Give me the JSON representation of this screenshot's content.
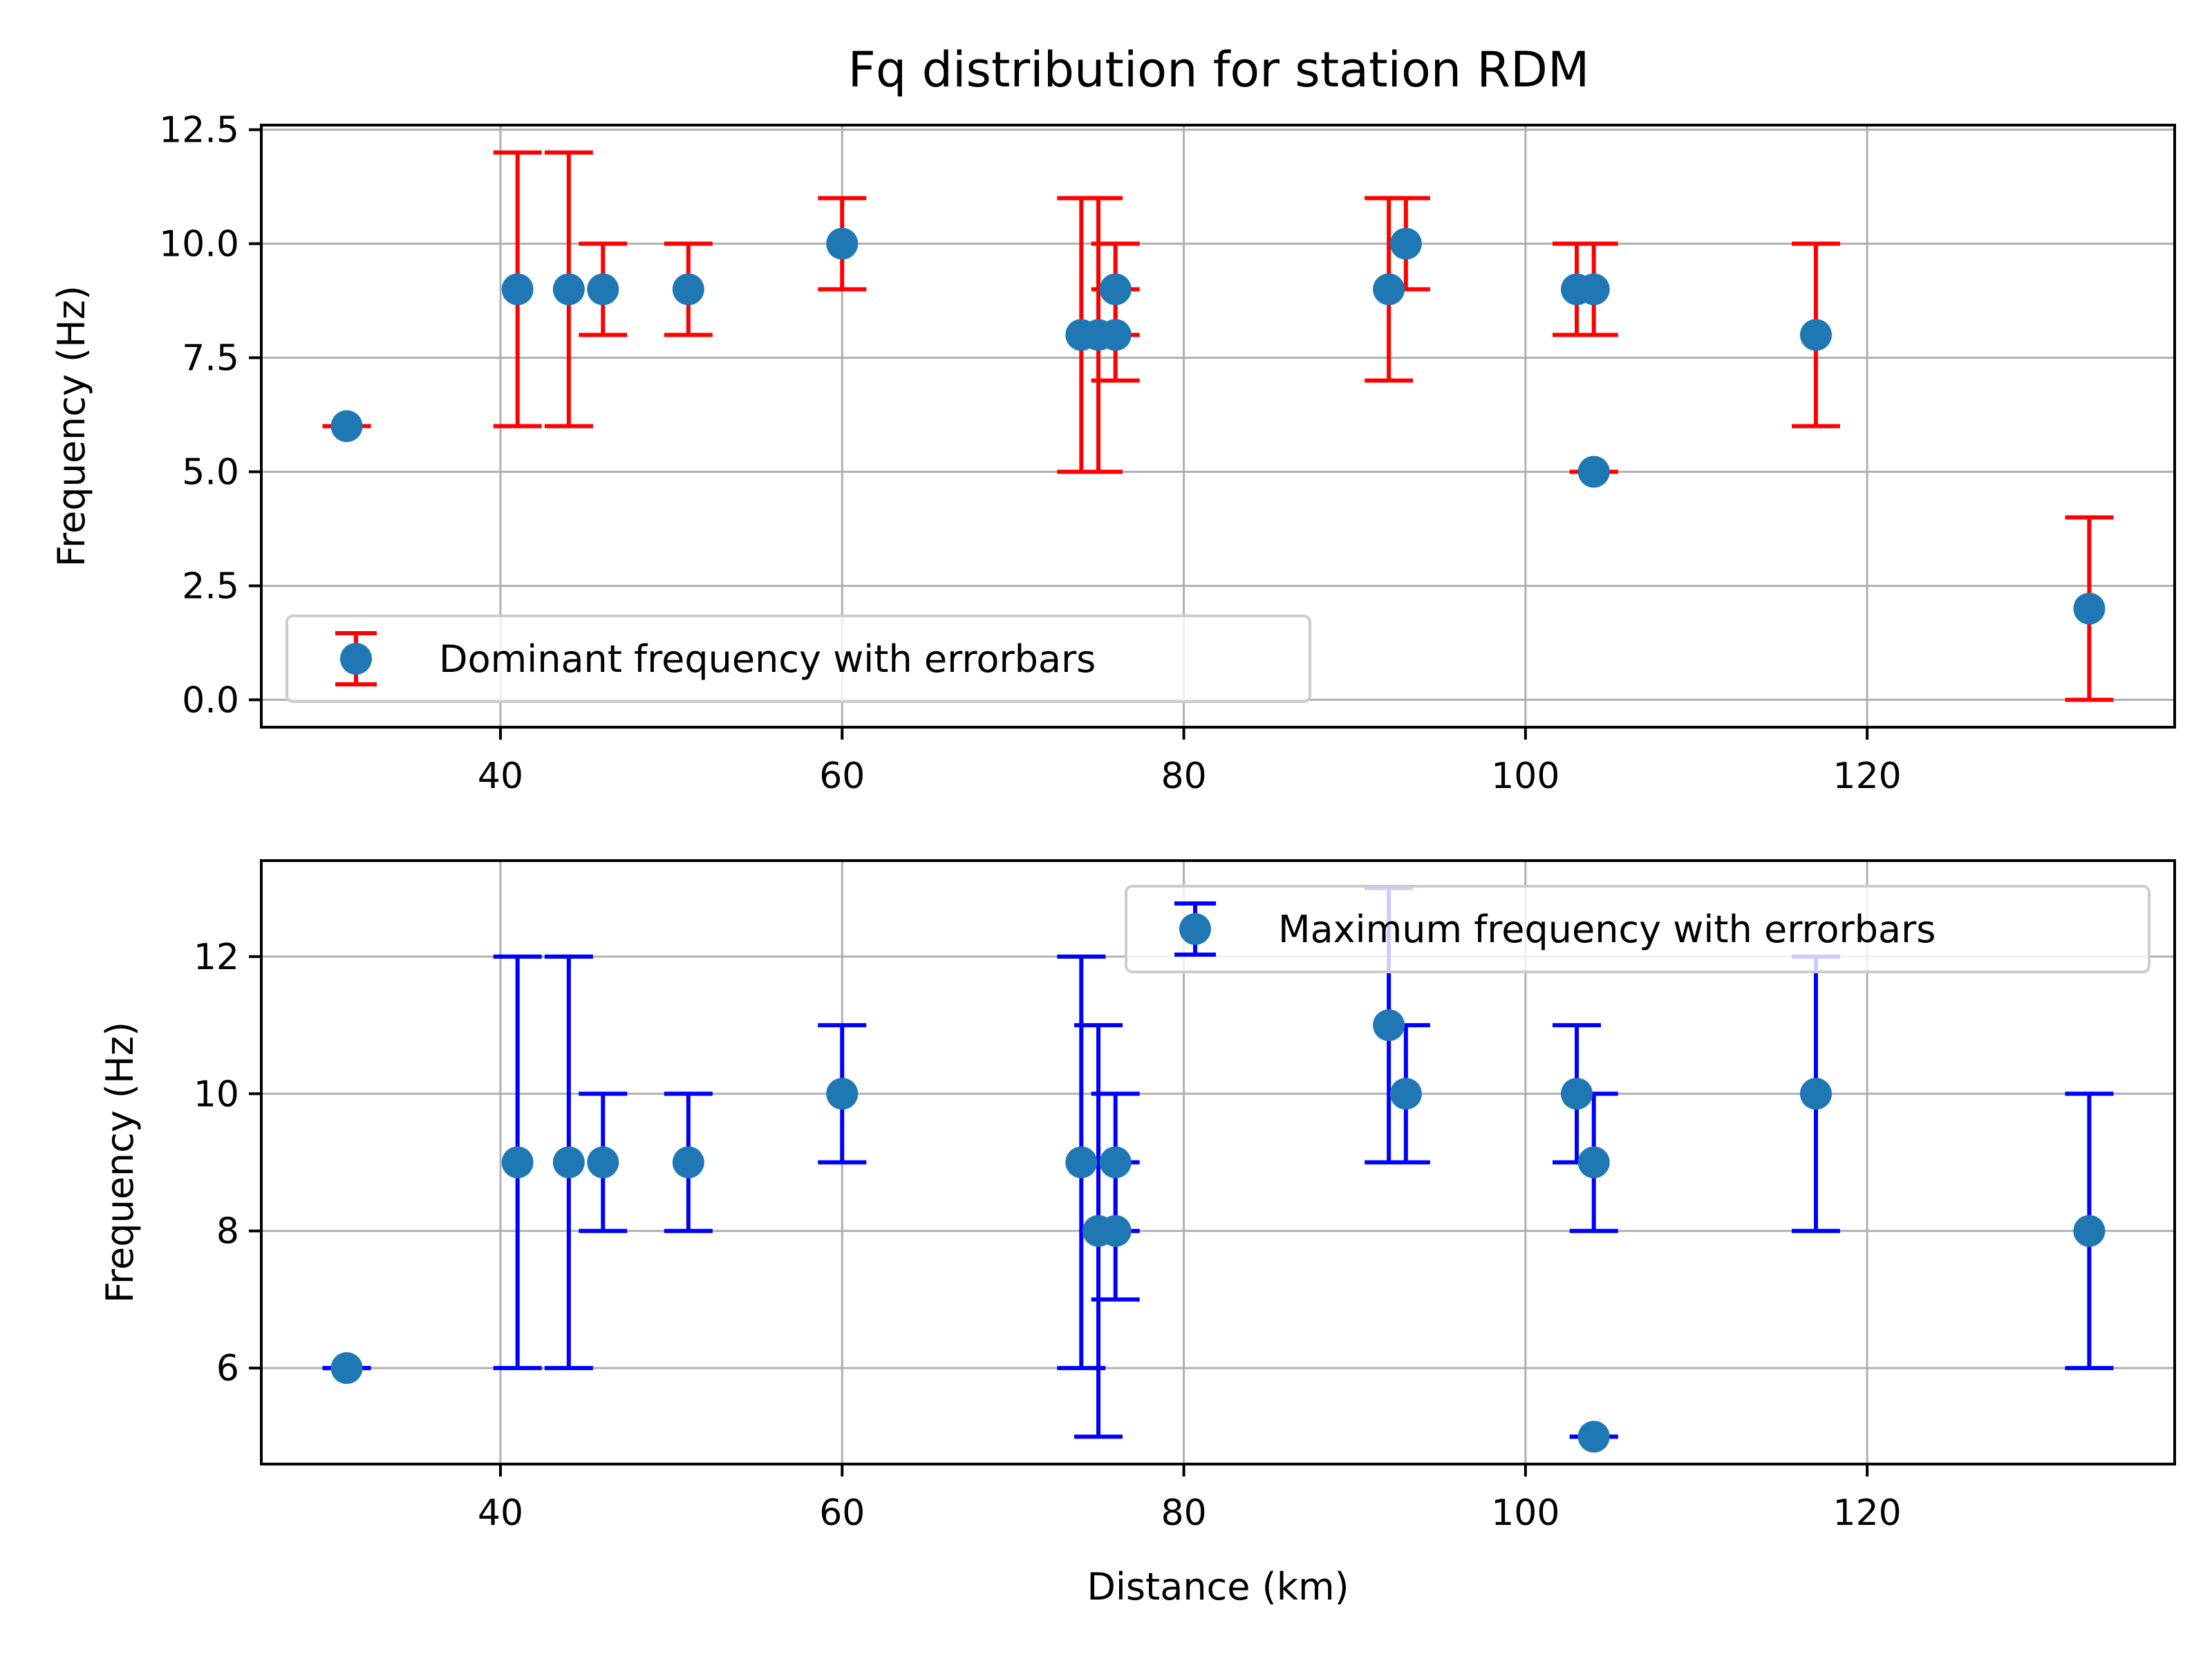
{
  "figure": {
    "title": "Fq distribution for station RDM"
  },
  "chart_data": [
    {
      "type": "scatter",
      "title": "Fq distribution for station RDM",
      "xlabel": "",
      "ylabel": "Frequency (Hz)",
      "xlim": [
        26,
        138
      ],
      "ylim": [
        -0.6,
        12.6
      ],
      "xticks": [
        40,
        60,
        80,
        100,
        120
      ],
      "yticks": [
        0.0,
        2.5,
        5.0,
        7.5,
        10.0,
        12.5
      ],
      "ytick_labels": [
        "0.0",
        "2.5",
        "5.0",
        "7.5",
        "10.0",
        "12.5"
      ],
      "grid": true,
      "legend": {
        "location": "lower-left",
        "entries": [
          "Dominant frequency with errorbars"
        ]
      },
      "colors": {
        "marker": "#1f77b4",
        "errorbar": "#ff0000"
      },
      "series": [
        {
          "name": "Dominant frequency with errorbars",
          "points": [
            {
              "x": 31,
              "y": 6,
              "lo": 6,
              "hi": 6
            },
            {
              "x": 41,
              "y": 9,
              "lo": 6,
              "hi": 12
            },
            {
              "x": 44,
              "y": 9,
              "lo": 6,
              "hi": 12
            },
            {
              "x": 46,
              "y": 9,
              "lo": 8,
              "hi": 10
            },
            {
              "x": 51,
              "y": 9,
              "lo": 8,
              "hi": 10
            },
            {
              "x": 60,
              "y": 10,
              "lo": 9,
              "hi": 11
            },
            {
              "x": 74,
              "y": 8,
              "lo": 5,
              "hi": 11
            },
            {
              "x": 75,
              "y": 8,
              "lo": 5,
              "hi": 11
            },
            {
              "x": 76,
              "y": 8,
              "lo": 7,
              "hi": 9
            },
            {
              "x": 76,
              "y": 9,
              "lo": 8,
              "hi": 10
            },
            {
              "x": 92,
              "y": 9,
              "lo": 7,
              "hi": 11
            },
            {
              "x": 93,
              "y": 10,
              "lo": 9,
              "hi": 11
            },
            {
              "x": 103,
              "y": 9,
              "lo": 8,
              "hi": 10
            },
            {
              "x": 104,
              "y": 9,
              "lo": 8,
              "hi": 10
            },
            {
              "x": 104,
              "y": 5,
              "lo": 5,
              "hi": 5
            },
            {
              "x": 117,
              "y": 8,
              "lo": 6,
              "hi": 10
            },
            {
              "x": 133,
              "y": 2,
              "lo": 0,
              "hi": 4
            }
          ]
        }
      ]
    },
    {
      "type": "scatter",
      "title": "",
      "xlabel": "Distance (km)",
      "ylabel": "Frequency (Hz)",
      "xlim": [
        26,
        138
      ],
      "ylim": [
        4.6,
        13.4
      ],
      "xticks": [
        40,
        60,
        80,
        100,
        120
      ],
      "yticks": [
        6,
        8,
        10,
        12
      ],
      "ytick_labels": [
        "6",
        "8",
        "10",
        "12"
      ],
      "grid": true,
      "legend": {
        "location": "upper-right",
        "entries": [
          "Maximum frequency with errorbars"
        ]
      },
      "colors": {
        "marker": "#1f77b4",
        "errorbar": "#0000ff"
      },
      "series": [
        {
          "name": "Maximum frequency with errorbars",
          "points": [
            {
              "x": 31,
              "y": 6,
              "lo": 6,
              "hi": 6
            },
            {
              "x": 41,
              "y": 9,
              "lo": 6,
              "hi": 12
            },
            {
              "x": 44,
              "y": 9,
              "lo": 6,
              "hi": 12
            },
            {
              "x": 46,
              "y": 9,
              "lo": 8,
              "hi": 10
            },
            {
              "x": 51,
              "y": 9,
              "lo": 8,
              "hi": 10
            },
            {
              "x": 60,
              "y": 10,
              "lo": 9,
              "hi": 11
            },
            {
              "x": 74,
              "y": 9,
              "lo": 6,
              "hi": 12
            },
            {
              "x": 75,
              "y": 8,
              "lo": 5,
              "hi": 11
            },
            {
              "x": 76,
              "y": 8,
              "lo": 7,
              "hi": 9
            },
            {
              "x": 76,
              "y": 9,
              "lo": 8,
              "hi": 10
            },
            {
              "x": 92,
              "y": 11,
              "lo": 9,
              "hi": 13
            },
            {
              "x": 93,
              "y": 10,
              "lo": 9,
              "hi": 11
            },
            {
              "x": 103,
              "y": 10,
              "lo": 9,
              "hi": 11
            },
            {
              "x": 104,
              "y": 9,
              "lo": 8,
              "hi": 10
            },
            {
              "x": 104,
              "y": 5,
              "lo": 5,
              "hi": 5
            },
            {
              "x": 117,
              "y": 10,
              "lo": 8,
              "hi": 12
            },
            {
              "x": 133,
              "y": 8,
              "lo": 6,
              "hi": 10
            }
          ]
        }
      ]
    }
  ]
}
